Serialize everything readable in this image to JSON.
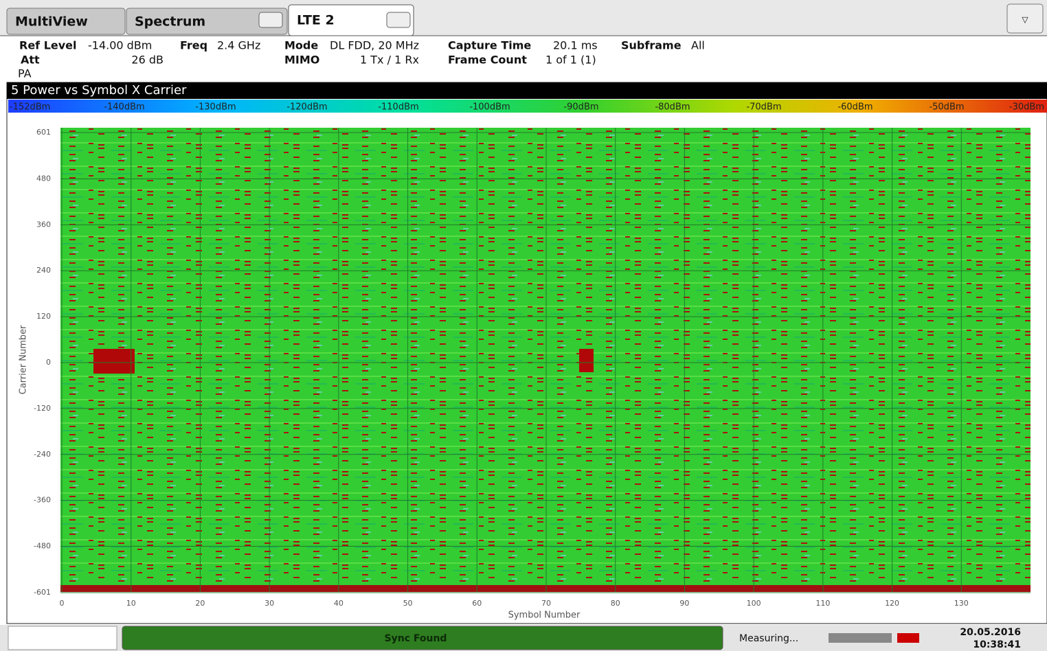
{
  "tabs": [
    "MultiView",
    "Spectrum",
    "LTE 2"
  ],
  "header": {
    "ref_level_label": "Ref Level",
    "ref_level": "-14.00 dBm",
    "att_label": "Att",
    "att": "26 dB",
    "pa": "PA",
    "freq_label": "Freq",
    "freq": "2.4 GHz",
    "mode_label": "Mode",
    "mode": "DL FDD, 20 MHz",
    "mimo_label": "MIMO",
    "mimo": "1 Tx / 1 Rx",
    "capture_label": "Capture Time",
    "capture": "20.1 ms",
    "frame_label": "Frame Count",
    "frame": "1 of 1 (1)",
    "subframe_label": "Subframe",
    "subframe": "All"
  },
  "chart_data": {
    "type": "heatmap",
    "title": "5 Power vs Symbol X Carrier",
    "color_scale": [
      "-152dBm",
      "-140dBm",
      "-130dBm",
      "-120dBm",
      "-110dBm",
      "-100dBm",
      "-90dBm",
      "-80dBm",
      "-70dBm",
      "-60dBm",
      "-50dBm",
      "-30dBm"
    ],
    "xlabel": "Symbol Number",
    "ylabel": "Carrier Number",
    "xlim": [
      0,
      140
    ],
    "ylim": [
      -601,
      601
    ],
    "xticks": [
      0,
      10,
      20,
      30,
      40,
      50,
      60,
      70,
      80,
      90,
      100,
      110,
      120,
      130
    ],
    "yticks": [
      601,
      480,
      360,
      240,
      120,
      0,
      -120,
      -240,
      -360,
      -480,
      -601
    ],
    "grid": true
  },
  "status": {
    "sync": "Sync Found",
    "measuring": "Measuring...",
    "date": "20.05.2016",
    "time": "10:38:41"
  }
}
